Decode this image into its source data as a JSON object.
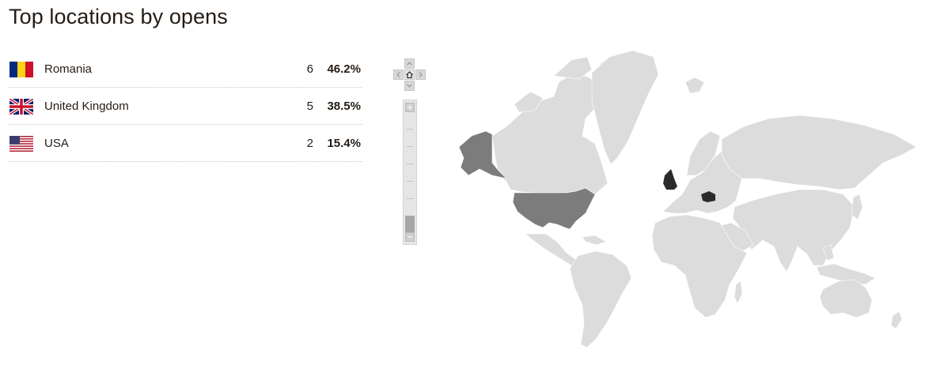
{
  "title": "Top locations by opens",
  "locations": [
    {
      "country": "Romania",
      "count": "6",
      "percent": "46.2%",
      "flag": "romania-flag"
    },
    {
      "country": "United Kingdom",
      "count": "5",
      "percent": "38.5%",
      "flag": "uk-flag"
    },
    {
      "country": "USA",
      "count": "2",
      "percent": "15.4%",
      "flag": "usa-flag"
    }
  ],
  "map": {
    "land_color": "#dcdcdc",
    "romania_color": "#2b2b2b",
    "uk_color": "#2b2b2b",
    "usa_color": "#7c7c7c"
  },
  "controls": {
    "pan_icons": [
      "pan-up-icon",
      "pan-left-icon",
      "home-icon",
      "pan-right-icon",
      "pan-down-icon"
    ],
    "zoom_icons": [
      "zoom-in-icon",
      "zoom-out-icon"
    ]
  }
}
